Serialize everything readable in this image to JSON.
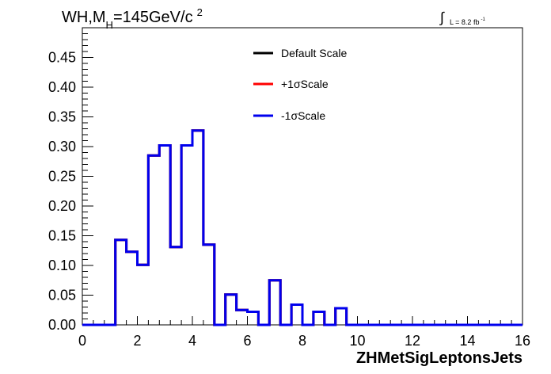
{
  "chart_data": {
    "type": "line",
    "title_main": "WH,M",
    "title_sub": "H",
    "title_rest": "=145GeV/c",
    "title_sup": "2",
    "lumi_label": "L = 8.2 fb",
    "lumi_sup": "-1",
    "xlabel": "ZHMetSigLeptonsJets",
    "ylabel": "",
    "xlim": [
      0,
      16
    ],
    "ylim": [
      0,
      0.5
    ],
    "x_ticks": [
      "0",
      "2",
      "4",
      "6",
      "8",
      "10",
      "12",
      "14",
      "16"
    ],
    "y_ticks": [
      "0.00",
      "0.05",
      "0.10",
      "0.15",
      "0.20",
      "0.25",
      "0.30",
      "0.35",
      "0.40",
      "0.45"
    ],
    "grid": false,
    "legend_position": "top-center",
    "bin_edges": [
      0,
      0.4,
      0.8,
      1.2,
      1.6,
      2.0,
      2.4,
      2.8,
      3.2,
      3.6,
      4.0,
      4.4,
      4.8,
      5.2,
      5.6,
      6.0,
      6.4,
      6.8,
      7.2,
      7.6,
      8.0,
      8.4,
      8.8,
      9.2,
      9.6,
      10.0,
      10.4,
      10.8,
      11.2,
      11.6,
      12.0,
      12.4,
      12.8,
      13.2,
      13.6,
      14.0,
      14.4,
      14.8,
      15.2,
      15.6,
      16.0
    ],
    "series": [
      {
        "name": "Default Scale",
        "color": "#000000",
        "values": [
          0,
          0,
          0,
          0.143,
          0.123,
          0.101,
          0.285,
          0.302,
          0.131,
          0.302,
          0.327,
          0.135,
          0,
          0.051,
          0.025,
          0.022,
          0,
          0.075,
          0,
          0.034,
          0,
          0.022,
          0,
          0.028,
          0,
          0,
          0,
          0,
          0,
          0,
          0,
          0,
          0,
          0,
          0,
          0,
          0,
          0,
          0,
          0
        ]
      },
      {
        "name": "+1σScale",
        "color": "#ff0000",
        "values": [
          0,
          0,
          0,
          0.143,
          0.123,
          0.101,
          0.285,
          0.302,
          0.131,
          0.302,
          0.327,
          0.135,
          0,
          0.051,
          0.025,
          0.022,
          0,
          0.075,
          0,
          0.034,
          0,
          0.022,
          0,
          0.028,
          0,
          0,
          0,
          0,
          0,
          0,
          0,
          0,
          0,
          0,
          0,
          0,
          0,
          0,
          0,
          0
        ]
      },
      {
        "name": "-1σScale",
        "color": "#0000ee",
        "values": [
          0,
          0,
          0,
          0.143,
          0.123,
          0.101,
          0.285,
          0.302,
          0.131,
          0.302,
          0.327,
          0.135,
          0,
          0.051,
          0.025,
          0.022,
          0,
          0.075,
          0,
          0.034,
          0,
          0.022,
          0,
          0.028,
          0,
          0,
          0,
          0,
          0,
          0,
          0,
          0,
          0,
          0,
          0,
          0,
          0,
          0,
          0,
          0
        ]
      }
    ]
  }
}
